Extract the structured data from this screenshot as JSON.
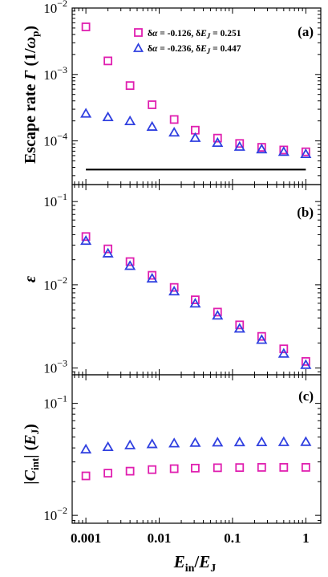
{
  "chart_data": [
    {
      "type": "scatter",
      "panel_label": "(a)",
      "ylabel": "Escape rate Γ (1/ωp)",
      "yscale": "log",
      "xscale": "log",
      "xlim": [
        0.00065,
        1.6
      ],
      "ylim": [
        2.2e-05,
        0.01
      ],
      "yticks": [
        {
          "value": 0.01,
          "label": "10",
          "exp": "−2"
        },
        {
          "value": 0.001,
          "label": "10",
          "exp": "−3"
        },
        {
          "value": 0.0001,
          "label": "10",
          "exp": "−4"
        }
      ],
      "legend": {
        "placement": "top-right"
      },
      "series": [
        {
          "name": "δα = -0.126, δEJ = 0.251",
          "marker": "square",
          "color": "#e020b0",
          "x": [
            0.001,
            0.002,
            0.004,
            0.008,
            0.016,
            0.031,
            0.0625,
            0.125,
            0.25,
            0.5,
            1
          ],
          "y": [
            0.0052,
            0.0016,
            0.00068,
            0.00035,
            0.00021,
            0.000145,
            0.00011,
            9.15e-05,
            8e-05,
            7.3e-05,
            6.85e-05
          ]
        },
        {
          "name": "δα = -0.236, δEJ = 0.447",
          "marker": "triangle",
          "color": "#3040e0",
          "x": [
            0.001,
            0.002,
            0.004,
            0.008,
            0.016,
            0.031,
            0.0625,
            0.125,
            0.25,
            0.5,
            1
          ],
          "y": [
            0.00026,
            0.00023,
            0.0002,
            0.000165,
            0.000135,
            0.000112,
            9.45e-05,
            8.25e-05,
            7.55e-05,
            6.9e-05,
            6.4e-05
          ]
        }
      ],
      "reference_line": {
        "y": 3.7e-05,
        "x_from": 0.001,
        "x_to": 1,
        "color": "#000000"
      }
    },
    {
      "type": "scatter",
      "panel_label": "(b)",
      "ylabel": "ε",
      "yscale": "log",
      "xscale": "log",
      "xlim": [
        0.00065,
        1.6
      ],
      "ylim": [
        0.00083,
        0.16
      ],
      "yticks": [
        {
          "value": 0.1,
          "label": "10",
          "exp": "−1"
        },
        {
          "value": 0.01,
          "label": "10",
          "exp": "−2"
        },
        {
          "value": 0.001,
          "label": "10",
          "exp": "−3"
        }
      ],
      "series": [
        {
          "name": "δα = -0.126, δEJ = 0.251",
          "marker": "square",
          "color": "#e020b0",
          "x": [
            0.001,
            0.002,
            0.004,
            0.008,
            0.016,
            0.031,
            0.0625,
            0.125,
            0.25,
            0.5,
            1
          ],
          "y": [
            0.038,
            0.027,
            0.019,
            0.013,
            0.0093,
            0.0066,
            0.0047,
            0.0033,
            0.0024,
            0.0017,
            0.0012
          ]
        },
        {
          "name": "δα = -0.236, δEJ = 0.447",
          "marker": "triangle",
          "color": "#3040e0",
          "x": [
            0.001,
            0.002,
            0.004,
            0.008,
            0.016,
            0.031,
            0.0625,
            0.125,
            0.25,
            0.5,
            1
          ],
          "y": [
            0.034,
            0.024,
            0.017,
            0.012,
            0.0084,
            0.006,
            0.0043,
            0.003,
            0.0022,
            0.0015,
            0.0011
          ]
        }
      ]
    },
    {
      "type": "scatter",
      "panel_label": "(c)",
      "ylabel": "|Cint|(EJ)",
      "yscale": "log",
      "xscale": "log",
      "xlim": [
        0.00065,
        1.6
      ],
      "ylim": [
        0.0085,
        0.18
      ],
      "yticks": [
        {
          "value": 0.1,
          "label": "10",
          "exp": "−1"
        },
        {
          "value": 0.01,
          "label": "10",
          "exp": "−2"
        }
      ],
      "xticks": [
        {
          "value": 0.001,
          "label": "0.001"
        },
        {
          "value": 0.01,
          "label": "0.01"
        },
        {
          "value": 0.1,
          "label": "0.1"
        },
        {
          "value": 1,
          "label": "1"
        }
      ],
      "xlabel": "Ein/EJ",
      "series": [
        {
          "name": "δα = -0.126, δEJ = 0.251",
          "marker": "square",
          "color": "#e020b0",
          "x": [
            0.001,
            0.002,
            0.004,
            0.008,
            0.016,
            0.031,
            0.0625,
            0.125,
            0.25,
            0.5,
            1
          ],
          "y": [
            0.0225,
            0.0238,
            0.0248,
            0.0256,
            0.0261,
            0.0264,
            0.0266,
            0.0267,
            0.0268,
            0.0268,
            0.0268
          ]
        },
        {
          "name": "δα = -0.236, δEJ = 0.447",
          "marker": "triangle",
          "color": "#3040e0",
          "x": [
            0.001,
            0.002,
            0.004,
            0.008,
            0.016,
            0.031,
            0.0625,
            0.125,
            0.25,
            0.5,
            1
          ],
          "y": [
            0.039,
            0.041,
            0.0425,
            0.0435,
            0.0442,
            0.0447,
            0.045,
            0.0452,
            0.0453,
            0.0454,
            0.0455
          ]
        }
      ]
    }
  ]
}
